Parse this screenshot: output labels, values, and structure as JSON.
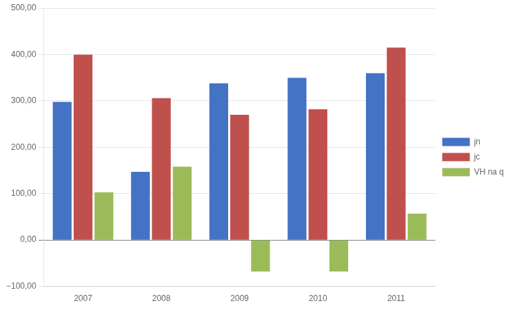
{
  "chart_data": {
    "type": "bar",
    "categories": [
      "2007",
      "2008",
      "2009",
      "2010",
      "2011"
    ],
    "series": [
      {
        "name": "jn",
        "color": "#4472C4",
        "values": [
          298,
          147,
          338,
          350,
          360
        ]
      },
      {
        "name": "jc",
        "color": "#C0504D",
        "values": [
          400,
          306,
          270,
          282,
          415
        ]
      },
      {
        "name": "VH na q",
        "color": "#9BBB59",
        "values": [
          103,
          158,
          -68,
          -68,
          57
        ]
      }
    ],
    "ylim": [
      -100,
      500
    ],
    "yticks": [
      {
        "value": -100,
        "label": "−100,00"
      },
      {
        "value": 0,
        "label": "0,00"
      },
      {
        "value": 100,
        "label": "100,00"
      },
      {
        "value": 200,
        "label": "200,00"
      },
      {
        "value": 300,
        "label": "300,00"
      },
      {
        "value": 400,
        "label": "400,00"
      },
      {
        "value": 500,
        "label": "500,00"
      }
    ],
    "grid": true,
    "legend": "right"
  }
}
